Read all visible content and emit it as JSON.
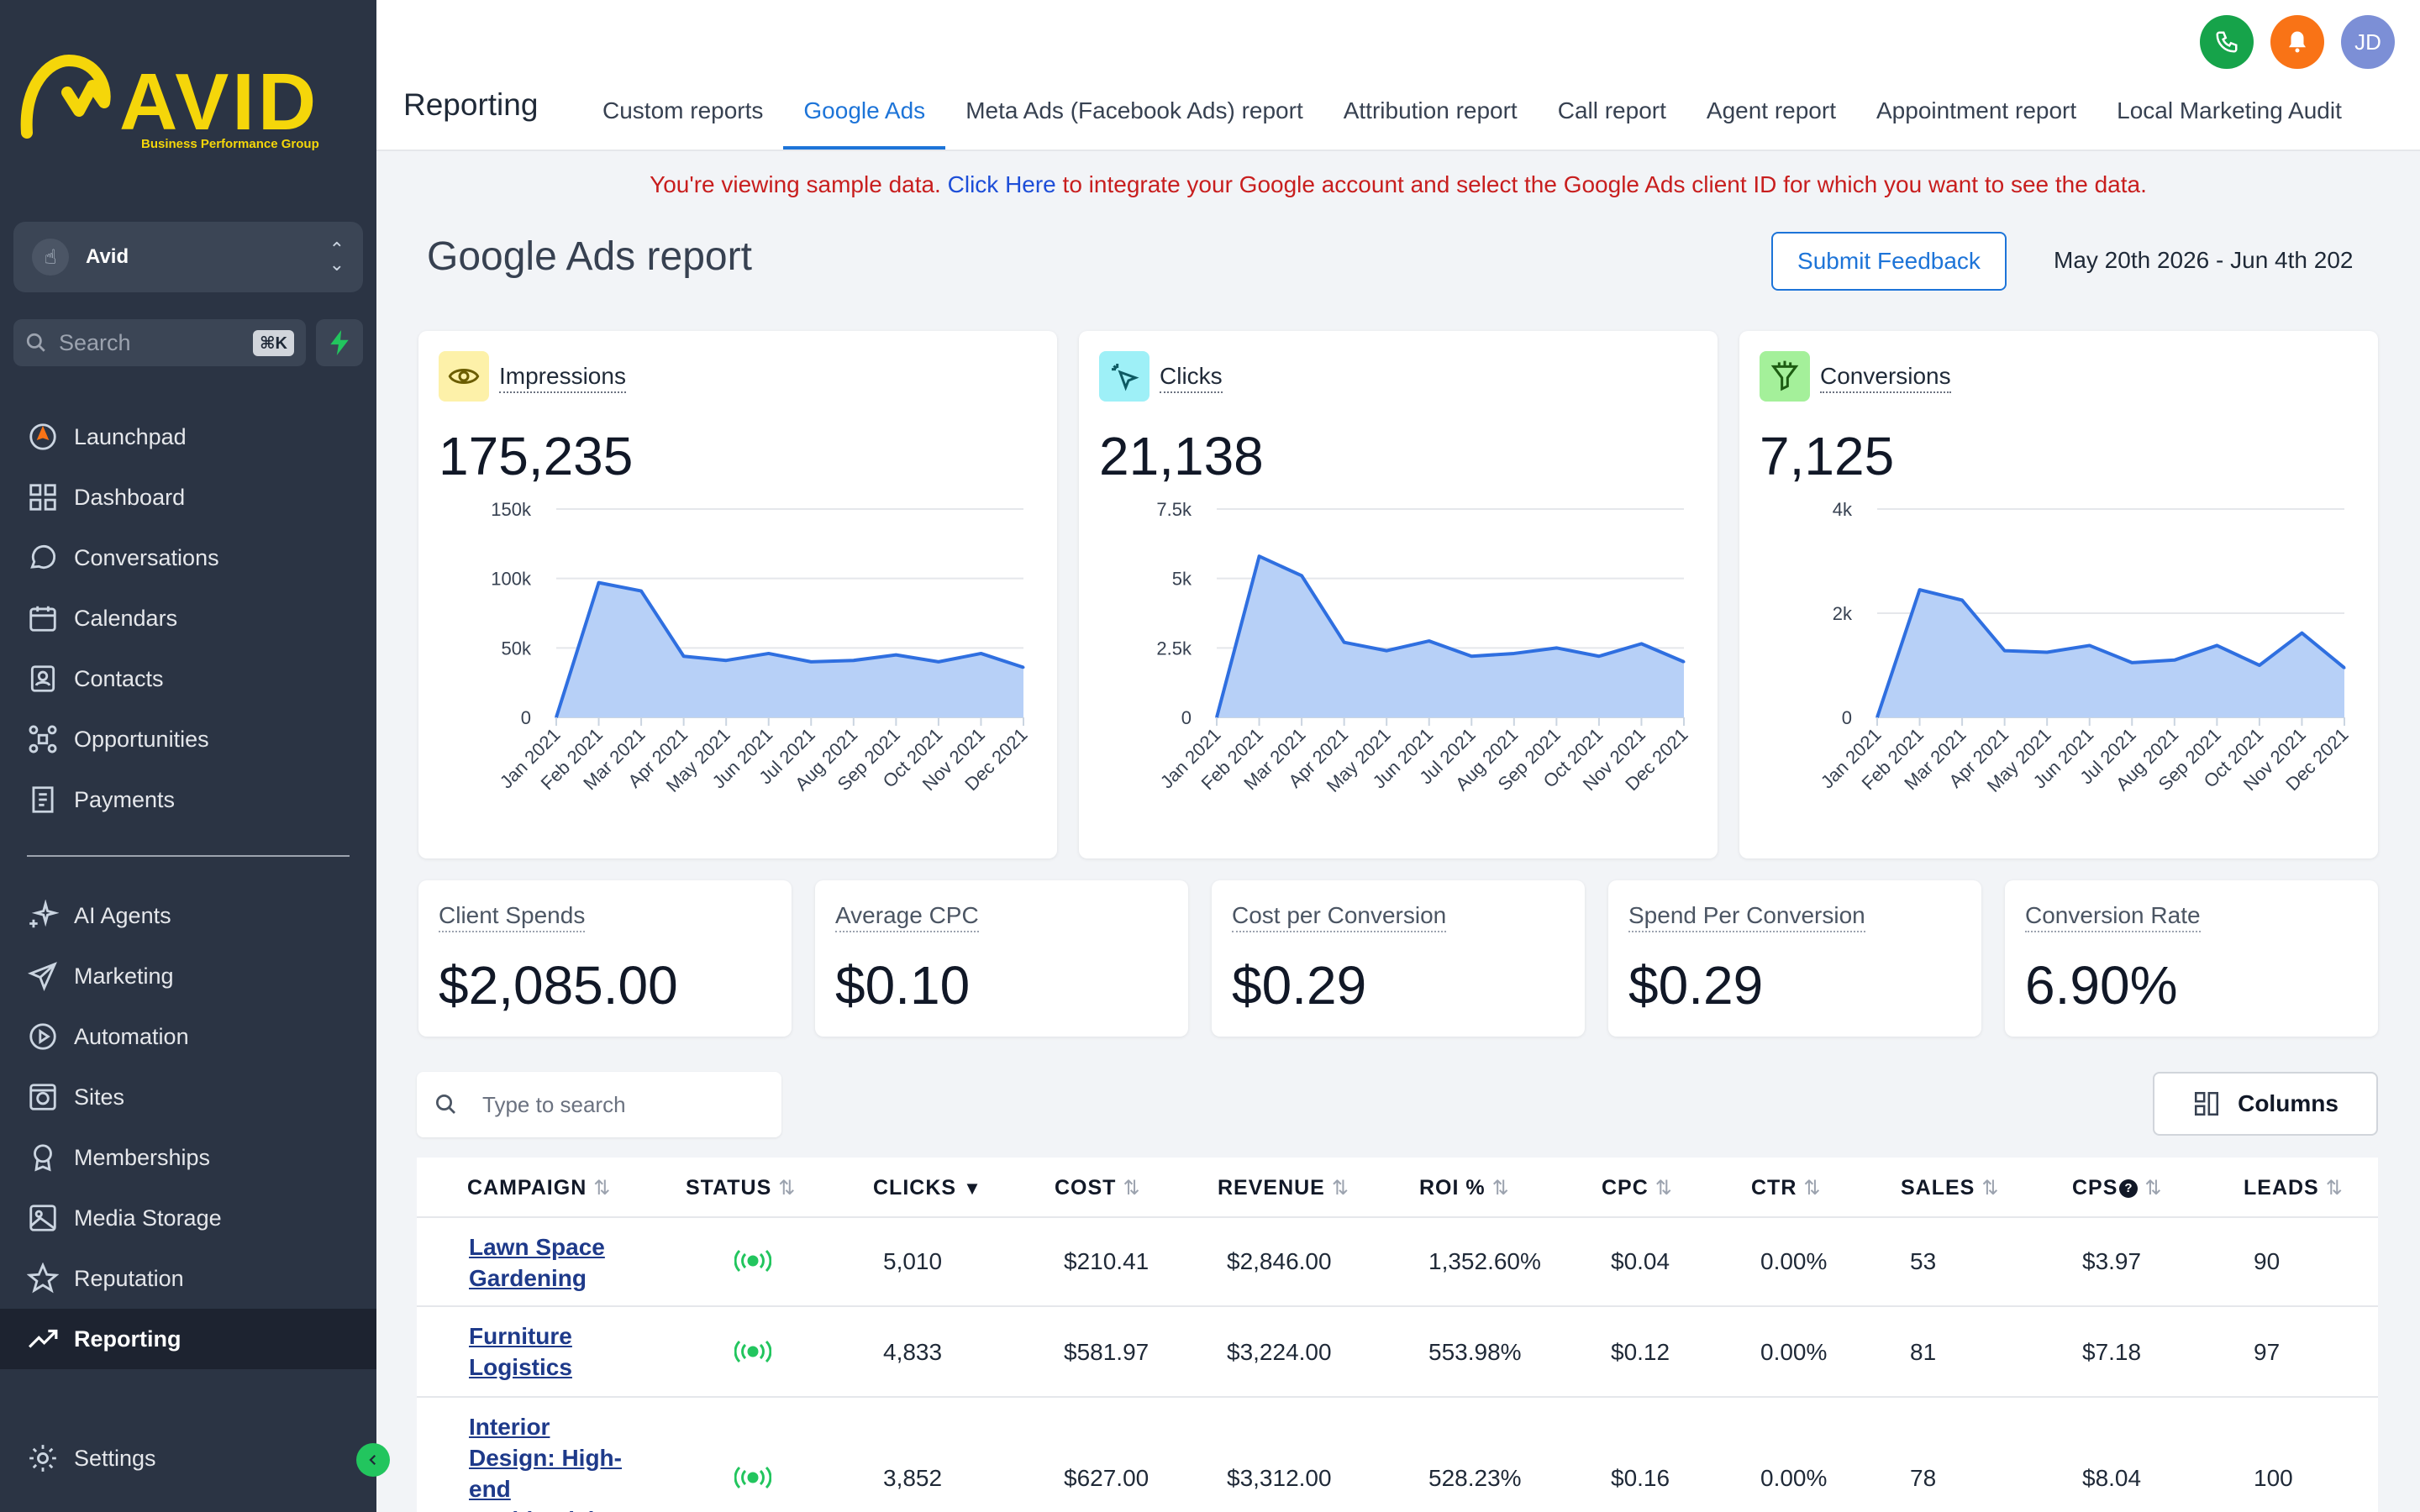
{
  "brand": {
    "name": "AVID",
    "tagline": "Business Performance Group",
    "accent": "#f5d60a"
  },
  "sidebar": {
    "account": "Avid",
    "search_placeholder": "Search",
    "search_shortcut": "⌘K",
    "items_top": [
      {
        "label": "Launchpad",
        "icon": "rocket-icon"
      },
      {
        "label": "Dashboard",
        "icon": "grid-icon"
      },
      {
        "label": "Conversations",
        "icon": "chat-icon"
      },
      {
        "label": "Calendars",
        "icon": "calendar-icon"
      },
      {
        "label": "Contacts",
        "icon": "contacts-icon"
      },
      {
        "label": "Opportunities",
        "icon": "opportunities-icon"
      },
      {
        "label": "Payments",
        "icon": "receipt-icon"
      }
    ],
    "items_bottom": [
      {
        "label": "AI Agents",
        "icon": "sparkle-icon"
      },
      {
        "label": "Marketing",
        "icon": "send-icon"
      },
      {
        "label": "Automation",
        "icon": "automation-icon"
      },
      {
        "label": "Sites",
        "icon": "globe-icon"
      },
      {
        "label": "Memberships",
        "icon": "badge-icon"
      },
      {
        "label": "Media Storage",
        "icon": "image-icon"
      },
      {
        "label": "Reputation",
        "icon": "star-icon"
      },
      {
        "label": "Reporting",
        "icon": "trend-icon"
      }
    ],
    "settings": "Settings",
    "active": "Reporting"
  },
  "header": {
    "title": "Reporting",
    "tabs": [
      "Custom reports",
      "Google Ads",
      "Meta Ads (Facebook Ads) report",
      "Attribution report",
      "Call report",
      "Agent report",
      "Appointment report",
      "Local Marketing Audit"
    ],
    "active_tab": "Google Ads",
    "avatar_initials": "JD",
    "colors": {
      "phone": "#16a34a",
      "bell": "#f97316",
      "avatar": "#7c8fd6"
    }
  },
  "notice": {
    "before": "You're viewing sample data. ",
    "link": "Click Here",
    "after": " to integrate your Google account and select the Google Ads client ID for which you want to see the data."
  },
  "report": {
    "title": "Google Ads report",
    "feedback_button": "Submit Feedback",
    "date_range": "May 20th 2026 - Jun 4th 202"
  },
  "chart_data": [
    {
      "type": "area",
      "title": "Impressions",
      "total": "175,235",
      "categories": [
        "Jan 2021",
        "Feb 2021",
        "Mar 2021",
        "Apr 2021",
        "May 2021",
        "Jun 2021",
        "Jul 2021",
        "Aug 2021",
        "Sep 2021",
        "Oct 2021",
        "Nov 2021",
        "Dec 2021"
      ],
      "values": [
        0,
        97000,
        91000,
        44000,
        41000,
        46000,
        40000,
        41000,
        45000,
        40000,
        46000,
        36000
      ],
      "ylim": [
        0,
        150000
      ],
      "yticks": [
        0,
        50000,
        100000,
        150000
      ],
      "ytick_labels": [
        "0",
        "50k",
        "100k",
        "150k"
      ],
      "icon": "eye-icon",
      "badge_color": "#fdf1a9"
    },
    {
      "type": "area",
      "title": "Clicks",
      "total": "21,138",
      "categories": [
        "Jan 2021",
        "Feb 2021",
        "Mar 2021",
        "Apr 2021",
        "May 2021",
        "Jun 2021",
        "Jul 2021",
        "Aug 2021",
        "Sep 2021",
        "Oct 2021",
        "Nov 2021",
        "Dec 2021"
      ],
      "values": [
        0,
        5800,
        5100,
        2700,
        2400,
        2750,
        2200,
        2300,
        2500,
        2200,
        2650,
        2000
      ],
      "ylim": [
        0,
        7500
      ],
      "yticks": [
        0,
        2500,
        5000,
        7500
      ],
      "ytick_labels": [
        "0",
        "2.5k",
        "5k",
        "7.5k"
      ],
      "icon": "cursor-click-icon",
      "badge_color": "#9ef0f7"
    },
    {
      "type": "area",
      "title": "Conversions",
      "total": "7,125",
      "categories": [
        "Jan 2021",
        "Feb 2021",
        "Mar 2021",
        "Apr 2021",
        "May 2021",
        "Jun 2021",
        "Jul 2021",
        "Aug 2021",
        "Sep 2021",
        "Oct 2021",
        "Nov 2021",
        "Dec 2021"
      ],
      "values": [
        0,
        2450,
        2250,
        1280,
        1250,
        1380,
        1050,
        1100,
        1380,
        1000,
        1620,
        950
      ],
      "ylim": [
        0,
        4000
      ],
      "yticks": [
        0,
        2000,
        4000
      ],
      "ytick_labels": [
        "0",
        "2k",
        "4k"
      ],
      "icon": "funnel-icon",
      "badge_color": "#a4f09a"
    }
  ],
  "stats": [
    {
      "label": "Client Spends",
      "value": "$2,085.00"
    },
    {
      "label": "Average CPC",
      "value": "$0.10"
    },
    {
      "label": "Cost per Conversion",
      "value": "$0.29"
    },
    {
      "label": "Spend Per Conversion",
      "value": "$0.29"
    },
    {
      "label": "Conversion Rate",
      "value": "6.90%"
    }
  ],
  "table": {
    "search_placeholder": "Type to search",
    "columns_button": "Columns",
    "headers": [
      "CAMPAIGN",
      "STATUS",
      "CLICKS",
      "COST",
      "REVENUE",
      "ROI %",
      "CPC",
      "CTR",
      "SALES",
      "CPS",
      "LEADS"
    ],
    "sorted_by": "CLICKS",
    "rows": [
      {
        "campaign": "Lawn Space Gardening",
        "clicks": "5,010",
        "cost": "$210.41",
        "revenue": "$2,846.00",
        "roi": "1,352.60%",
        "cpc": "$0.04",
        "ctr": "0.00%",
        "sales": "53",
        "cps": "$3.97",
        "leads": "90"
      },
      {
        "campaign": "Furniture Logistics",
        "clicks": "4,833",
        "cost": "$581.97",
        "revenue": "$3,224.00",
        "roi": "553.98%",
        "cpc": "$0.12",
        "ctr": "0.00%",
        "sales": "81",
        "cps": "$7.18",
        "leads": "97"
      },
      {
        "campaign": "Interior Design: High-end Residential",
        "clicks": "3,852",
        "cost": "$627.00",
        "revenue": "$3,312.00",
        "roi": "528.23%",
        "cpc": "$0.16",
        "ctr": "0.00%",
        "sales": "78",
        "cps": "$8.04",
        "leads": "100"
      }
    ]
  }
}
